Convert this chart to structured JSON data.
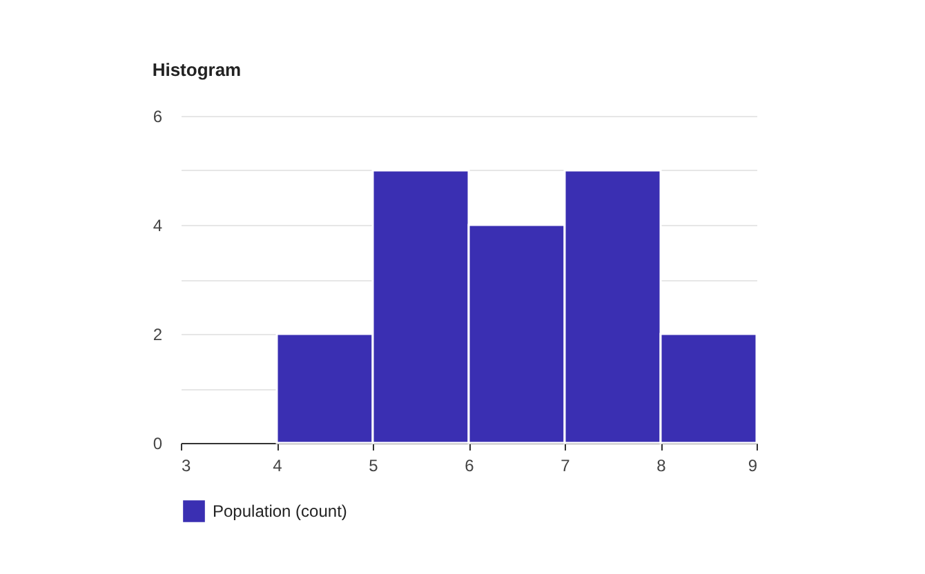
{
  "chart_data": {
    "type": "histogram",
    "title": "Histogram",
    "bins": [
      3,
      4,
      5,
      6,
      7,
      8,
      9
    ],
    "series": [
      {
        "name": "Population (count)",
        "color": "#3a2fb2",
        "values": [
          0,
          2,
          5,
          4,
          5,
          2
        ]
      }
    ],
    "xlim": [
      3,
      9
    ],
    "xticks": [
      3,
      4,
      5,
      6,
      7,
      8,
      9
    ],
    "ylim": [
      0,
      6
    ],
    "yticks": [
      0,
      {
        "value": 1,
        "label": null
      },
      2,
      {
        "value": 3,
        "label": null
      },
      4,
      {
        "value": 5,
        "label": null
      },
      6
    ],
    "grid": "y",
    "legend": "bottom"
  }
}
